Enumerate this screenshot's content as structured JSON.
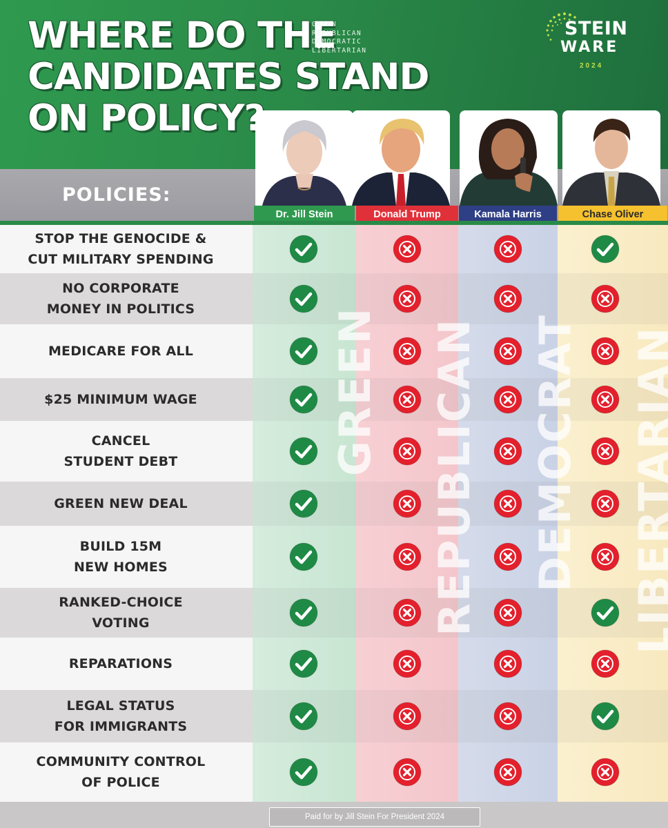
{
  "header": {
    "title_lines": [
      "WHERE DO THE",
      "CANDIDATES STAND",
      "ON POLICY?"
    ],
    "parties": [
      "GREEN",
      "REPUBLICAN",
      "DEMOCRATIC",
      "LIBERTARIAN"
    ],
    "logo": {
      "line1": "STEIN",
      "line2": "WARE",
      "year": "2024"
    }
  },
  "policies_label": "POLICIES:",
  "candidates": [
    {
      "name": "Dr. Jill Stein",
      "party_watermark": "GREEN",
      "label_bg": "#2f9a4f",
      "label_color": "#ffffff"
    },
    {
      "name": "Donald Trump",
      "party_watermark": "REPUBLICAN",
      "label_bg": "#e0313a",
      "label_color": "#ffffff"
    },
    {
      "name": "Kamala Harris",
      "party_watermark": "DEMOCRAT",
      "label_bg": "#2e3f86",
      "label_color": "#ffffff"
    },
    {
      "name": "Chase Oliver",
      "party_watermark": "LIBERTARIAN",
      "label_bg": "#f5c12e",
      "label_color": "#2b2b2b"
    }
  ],
  "rows": [
    {
      "policy": "STOP THE GENOCIDE &\nCUT MILITARY SPENDING",
      "marks": [
        "check",
        "x",
        "x",
        "check"
      ]
    },
    {
      "policy": "NO CORPORATE\nMONEY IN POLITICS",
      "marks": [
        "check",
        "x",
        "x",
        "x"
      ]
    },
    {
      "policy": "MEDICARE FOR ALL",
      "marks": [
        "check",
        "x",
        "x",
        "x"
      ]
    },
    {
      "policy": "$25 MINIMUM WAGE",
      "marks": [
        "check",
        "x",
        "x",
        "x"
      ]
    },
    {
      "policy": "CANCEL\nSTUDENT DEBT",
      "marks": [
        "check",
        "x",
        "x",
        "x"
      ]
    },
    {
      "policy": "GREEN NEW DEAL",
      "marks": [
        "check",
        "x",
        "x",
        "x"
      ]
    },
    {
      "policy": "BUILD 15M\nNEW HOMES",
      "marks": [
        "check",
        "x",
        "x",
        "x"
      ]
    },
    {
      "policy": "RANKED-CHOICE\nVOTING",
      "marks": [
        "check",
        "x",
        "x",
        "check"
      ]
    },
    {
      "policy": "REPARATIONS",
      "marks": [
        "check",
        "x",
        "x",
        "x"
      ]
    },
    {
      "policy": "LEGAL STATUS\nFOR IMMIGRANTS",
      "marks": [
        "check",
        "x",
        "x",
        "check"
      ]
    },
    {
      "policy": "COMMUNITY CONTROL\nOF POLICE",
      "marks": [
        "check",
        "x",
        "x",
        "x"
      ]
    }
  ],
  "mark_colors": {
    "check": "#1f8a45",
    "x": "#e3202c"
  },
  "footer": "Paid for by Jill Stein For President 2024"
}
